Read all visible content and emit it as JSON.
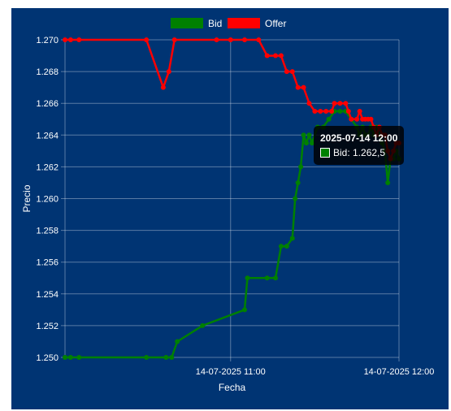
{
  "chart_data": {
    "type": "line",
    "title": "",
    "xlabel": "Fecha",
    "ylabel": "Precio",
    "ylim": [
      1.25,
      1.27
    ],
    "xlim": [
      "2025-07-14 10:01",
      "2025-07-14 12:00"
    ],
    "y_ticks": [
      "1.250",
      "1.252",
      "1.254",
      "1.256",
      "1.258",
      "1.260",
      "1.262",
      "1.264",
      "1.266",
      "1.268",
      "1.270"
    ],
    "x_ticks": [
      {
        "t": "2025-07-14 11:00",
        "label": "14-07-2025 11:00"
      },
      {
        "t": "2025-07-14 12:00",
        "label": "14-07-2025 12:00"
      }
    ],
    "grid": true,
    "legend_position": "top-center",
    "series": [
      {
        "name": "Bid",
        "color": "#008000",
        "points": [
          [
            "2025-07-14 10:01",
            1.25
          ],
          [
            "2025-07-14 10:03",
            1.25
          ],
          [
            "2025-07-14 10:06",
            1.25
          ],
          [
            "2025-07-14 10:30",
            1.25
          ],
          [
            "2025-07-14 10:37",
            1.25
          ],
          [
            "2025-07-14 10:39",
            1.25
          ],
          [
            "2025-07-14 10:41",
            1.251
          ],
          [
            "2025-07-14 10:50",
            1.252
          ],
          [
            "2025-07-14 11:05",
            1.253
          ],
          [
            "2025-07-14 11:06",
            1.255
          ],
          [
            "2025-07-14 11:13",
            1.255
          ],
          [
            "2025-07-14 11:16",
            1.255
          ],
          [
            "2025-07-14 11:18",
            1.257
          ],
          [
            "2025-07-14 11:20",
            1.257
          ],
          [
            "2025-07-14 11:22",
            1.2575
          ],
          [
            "2025-07-14 11:23",
            1.26
          ],
          [
            "2025-07-14 11:24",
            1.261
          ],
          [
            "2025-07-14 11:25",
            1.262
          ],
          [
            "2025-07-14 11:26",
            1.264
          ],
          [
            "2025-07-14 11:27",
            1.2635
          ],
          [
            "2025-07-14 11:28",
            1.264
          ],
          [
            "2025-07-14 11:29",
            1.2635
          ],
          [
            "2025-07-14 11:31",
            1.2645
          ],
          [
            "2025-07-14 11:33",
            1.2645
          ],
          [
            "2025-07-14 11:35",
            1.265
          ],
          [
            "2025-07-14 11:37",
            1.2655
          ],
          [
            "2025-07-14 11:39",
            1.2655
          ],
          [
            "2025-07-14 11:41",
            1.2655
          ],
          [
            "2025-07-14 11:43",
            1.265
          ],
          [
            "2025-07-14 11:45",
            1.2645
          ],
          [
            "2025-07-14 11:46",
            1.264
          ],
          [
            "2025-07-14 11:47",
            1.2645
          ],
          [
            "2025-07-14 11:48",
            1.264
          ],
          [
            "2025-07-14 11:49",
            1.264
          ],
          [
            "2025-07-14 11:50",
            1.2645
          ],
          [
            "2025-07-14 11:51",
            1.264
          ],
          [
            "2025-07-14 11:52",
            1.2645
          ],
          [
            "2025-07-14 11:53",
            1.264
          ],
          [
            "2025-07-14 11:54",
            1.2635
          ],
          [
            "2025-07-14 11:55",
            1.263
          ],
          [
            "2025-07-14 11:56",
            1.261
          ],
          [
            "2025-07-14 11:57",
            1.2625
          ],
          [
            "2025-07-14 11:58",
            1.2625
          ],
          [
            "2025-07-14 11:59",
            1.263
          ],
          [
            "2025-07-14 12:00",
            1.2625
          ]
        ]
      },
      {
        "name": "Offer",
        "color": "#ff0000",
        "points": [
          [
            "2025-07-14 10:01",
            1.27
          ],
          [
            "2025-07-14 10:03",
            1.27
          ],
          [
            "2025-07-14 10:06",
            1.27
          ],
          [
            "2025-07-14 10:30",
            1.27
          ],
          [
            "2025-07-14 10:36",
            1.267
          ],
          [
            "2025-07-14 10:38",
            1.268
          ],
          [
            "2025-07-14 10:40",
            1.27
          ],
          [
            "2025-07-14 10:55",
            1.27
          ],
          [
            "2025-07-14 11:00",
            1.27
          ],
          [
            "2025-07-14 11:05",
            1.27
          ],
          [
            "2025-07-14 11:10",
            1.27
          ],
          [
            "2025-07-14 11:13",
            1.269
          ],
          [
            "2025-07-14 11:16",
            1.269
          ],
          [
            "2025-07-14 11:18",
            1.269
          ],
          [
            "2025-07-14 11:20",
            1.268
          ],
          [
            "2025-07-14 11:22",
            1.268
          ],
          [
            "2025-07-14 11:24",
            1.267
          ],
          [
            "2025-07-14 11:26",
            1.267
          ],
          [
            "2025-07-14 11:28",
            1.266
          ],
          [
            "2025-07-14 11:30",
            1.2655
          ],
          [
            "2025-07-14 11:32",
            1.2655
          ],
          [
            "2025-07-14 11:34",
            1.2655
          ],
          [
            "2025-07-14 11:36",
            1.2655
          ],
          [
            "2025-07-14 11:37",
            1.266
          ],
          [
            "2025-07-14 11:39",
            1.266
          ],
          [
            "2025-07-14 11:41",
            1.266
          ],
          [
            "2025-07-14 11:42",
            1.2655
          ],
          [
            "2025-07-14 11:43",
            1.265
          ],
          [
            "2025-07-14 11:45",
            1.265
          ],
          [
            "2025-07-14 11:46",
            1.2655
          ],
          [
            "2025-07-14 11:47",
            1.265
          ],
          [
            "2025-07-14 11:48",
            1.265
          ],
          [
            "2025-07-14 11:49",
            1.265
          ],
          [
            "2025-07-14 11:50",
            1.265
          ],
          [
            "2025-07-14 11:51",
            1.2645
          ],
          [
            "2025-07-14 11:52",
            1.264
          ],
          [
            "2025-07-14 11:53",
            1.2645
          ],
          [
            "2025-07-14 11:54",
            1.264
          ],
          [
            "2025-07-14 11:55",
            1.264
          ],
          [
            "2025-07-14 11:56",
            1.263
          ],
          [
            "2025-07-14 11:57",
            1.2625
          ],
          [
            "2025-07-14 11:58",
            1.263
          ],
          [
            "2025-07-14 11:59",
            1.2635
          ],
          [
            "2025-07-14 12:00",
            1.2635
          ]
        ]
      }
    ],
    "tooltip": {
      "title": "2025-07-14 12:00",
      "label": "Bid: 1.262,5"
    }
  },
  "colors": {
    "background": "#003473",
    "grid": "#ffffff",
    "text": "#ffffff"
  }
}
